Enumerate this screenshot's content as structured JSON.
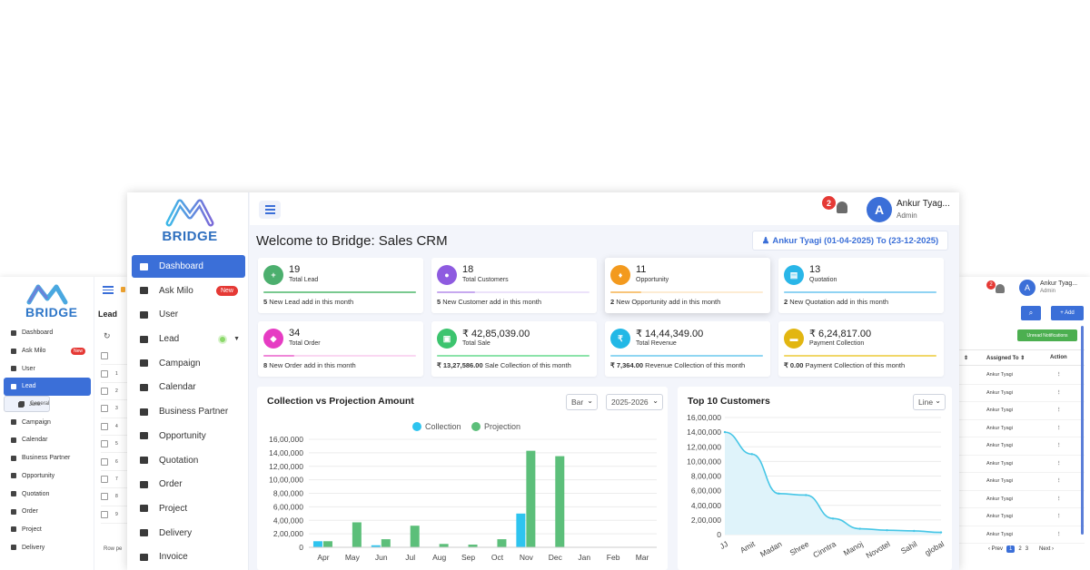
{
  "bg_left": {
    "logo_text": "BRIDGE",
    "nav": [
      {
        "label": "Dashboard"
      },
      {
        "label": "Ask Milo",
        "badge": "New"
      },
      {
        "label": "User"
      },
      {
        "label": "Lead",
        "active": true
      },
      {
        "label": "General",
        "sub": true
      },
      {
        "label": "Junk",
        "sub": true
      },
      {
        "label": "Campaign"
      },
      {
        "label": "Calendar"
      },
      {
        "label": "Business Partner"
      },
      {
        "label": "Opportunity"
      },
      {
        "label": "Quotation"
      },
      {
        "label": "Order"
      },
      {
        "label": "Project"
      },
      {
        "label": "Delivery"
      }
    ],
    "page_title": "Lead",
    "row_numbers": [
      "1",
      "2",
      "3",
      "4",
      "5",
      "6",
      "7",
      "8",
      "9"
    ],
    "footer_text": "Row pe"
  },
  "bg_right": {
    "notif_count": "2",
    "user_name": "Ankur Tyag...",
    "user_role": "Admin",
    "search_label": "⌕",
    "add_label": "+ Add",
    "unread_label": "Unread Notifications",
    "col_assigned": "Assigned To ⇕",
    "col_action": "Action",
    "rows": [
      "Ankur Tyagi",
      "Ankur Tyagi",
      "Ankur Tyagi",
      "Ankur Tyagi",
      "Ankur Tyagi",
      "Ankur Tyagi",
      "Ankur Tyagi",
      "Ankur Tyagi",
      "Ankur Tyagi",
      "Ankur Tyagi"
    ],
    "pager": {
      "prev": "‹ Prev",
      "pages": [
        "1",
        "2",
        "3"
      ],
      "next": "Next ›"
    }
  },
  "main": {
    "logo_text": "BRIDGE",
    "nav": [
      {
        "label": "Dashboard",
        "active": true,
        "name": "dashboard"
      },
      {
        "label": "Ask Milo",
        "badge": "New",
        "name": "ask-milo"
      },
      {
        "label": "User",
        "name": "user"
      },
      {
        "label": "Lead",
        "dot": true,
        "name": "lead"
      },
      {
        "label": "Campaign",
        "name": "campaign"
      },
      {
        "label": "Calendar",
        "name": "calendar"
      },
      {
        "label": "Business Partner",
        "name": "business-partner"
      },
      {
        "label": "Opportunity",
        "name": "opportunity"
      },
      {
        "label": "Quotation",
        "name": "quotation"
      },
      {
        "label": "Order",
        "name": "order"
      },
      {
        "label": "Project",
        "name": "project"
      },
      {
        "label": "Delivery",
        "name": "delivery"
      },
      {
        "label": "Invoice",
        "name": "invoice"
      }
    ],
    "notif_count": "2",
    "avatar_letter": "A",
    "user_name": "Ankur Tyag...",
    "user_role": "Admin",
    "page_title": "Welcome to Bridge: Sales CRM",
    "range_label": "Ankur Tyagi (01-04-2025) To (23-12-2025)",
    "cards": [
      {
        "value": "19",
        "label": "Total Lead",
        "foot_bold": "5",
        "foot": " New Lead add in this month",
        "color": "#4caf6e",
        "bar": "#79c98f",
        "fill": 1
      },
      {
        "value": "18",
        "label": "Total Customers",
        "foot_bold": "5",
        "foot": " New Customer add in this month",
        "color": "#8e5be0",
        "bar": "#c7a9ef",
        "fill": 0.25
      },
      {
        "value": "11",
        "label": "Opportunity",
        "foot_bold": "2",
        "foot": " New Opportunity add in this month",
        "color": "#f39a1e",
        "bar": "#f8c57a",
        "fill": 0.2
      },
      {
        "value": "13",
        "label": "Quotation",
        "foot_bold": "2",
        "foot": " New Quotation add in this month",
        "color": "#29b6e8",
        "bar": "#8fd3f3",
        "fill": 1
      },
      {
        "value": "34",
        "label": "Total Order",
        "foot_bold": "8",
        "foot": " New Order add in this month",
        "color": "#e63cc3",
        "bar": "#ef86d8",
        "fill": 0.2
      },
      {
        "value": "₹ 42,85,039.00",
        "label": "Total Sale",
        "foot_bold": "₹ 13,27,586.00",
        "foot": " Sale Collection of this month",
        "color": "#3cc46e",
        "bar": "#8be3a9",
        "fill": 1
      },
      {
        "value": "₹ 14,44,349.00",
        "label": "Total Revenue",
        "foot_bold": "₹ 7,364.00",
        "foot": " Revenue Collection of this month",
        "color": "#22b8e6",
        "bar": "#8fd6f2",
        "fill": 1
      },
      {
        "value": "₹ 6,24,817.00",
        "label": "Payment Collection",
        "foot_bold": "₹ 0.00",
        "foot": " Payment Collection of this month",
        "color": "#e2b611",
        "bar": "#f1d768",
        "fill": 1
      }
    ],
    "chart1_title": "Collection vs Projection Amount",
    "chart1_type_select": "Bar",
    "chart1_year_select": "2025-2026",
    "chart2_title": "Top 10 Customers",
    "chart2_type_select": "Line"
  },
  "colors": {
    "accent": "#3b6fd8",
    "collection": "#2ec4ef",
    "projection": "#5cbf7a",
    "line": "#46c6e6"
  },
  "chart_data": [
    {
      "type": "bar",
      "title": "Collection vs Projection Amount",
      "categories": [
        "Apr",
        "May",
        "Jun",
        "Jul",
        "Aug",
        "Sep",
        "Oct",
        "Nov",
        "Dec",
        "Jan",
        "Feb",
        "Mar"
      ],
      "series": [
        {
          "name": "Collection",
          "values": [
            90000,
            0,
            30000,
            0,
            0,
            0,
            0,
            500000,
            0,
            0,
            0,
            0
          ]
        },
        {
          "name": "Projection",
          "values": [
            90000,
            370000,
            120000,
            320000,
            50000,
            40000,
            120000,
            1430000,
            1350000,
            0,
            0,
            0
          ]
        }
      ],
      "ylim": [
        0,
        1600000
      ],
      "yticks": [
        "0",
        "2,00,000",
        "4,00,000",
        "6,00,000",
        "8,00,000",
        "10,00,000",
        "12,00,000",
        "14,00,000",
        "16,00,000"
      ],
      "legend": "top",
      "grid": true
    },
    {
      "type": "area",
      "title": "Top 10 Customers",
      "categories": [
        "JJ",
        "Amit",
        "Madan",
        "Shree",
        "Cinntra",
        "Manoj",
        "Novotel",
        "Sahil",
        "global"
      ],
      "values": [
        1400000,
        1100000,
        560000,
        540000,
        220000,
        80000,
        60000,
        50000,
        30000
      ],
      "ylim": [
        0,
        1600000
      ],
      "yticks": [
        "0",
        "2,00,000",
        "4,00,000",
        "6,00,000",
        "8,00,000",
        "10,00,000",
        "12,00,000",
        "14,00,000",
        "16,00,000"
      ],
      "grid": true
    }
  ]
}
